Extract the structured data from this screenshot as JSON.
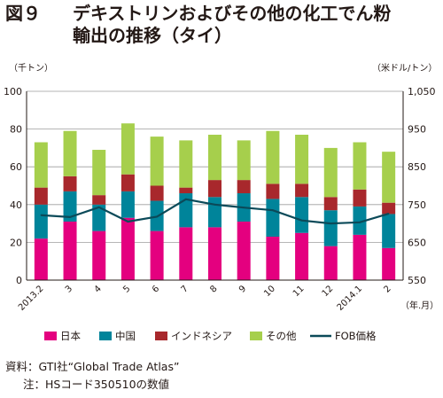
{
  "title": {
    "label": "図９",
    "line1": "デキストリンおよびその他の化工でん粉",
    "line2": "輸出の推移（タイ）"
  },
  "notes": {
    "source": "資料：GTI社“Global Trade Atlas”",
    "note": "注：HSコード350510の数値"
  },
  "colors": {
    "japan": "#e4007f",
    "china": "#00849a",
    "indonesia": "#a8282c",
    "other": "#a6cf4c",
    "fob": "#0b4a59",
    "grid": "#9e9e9e"
  },
  "chart_data": {
    "type": "bar",
    "stacked": true,
    "left_axis_unit": "（千トン）",
    "right_axis_unit": "（米ドル/トン）",
    "x_unit": "（年.月）",
    "ylim": [
      0,
      100
    ],
    "y_ticks": [
      0,
      20,
      40,
      60,
      80,
      100
    ],
    "y2lim": [
      550,
      1050
    ],
    "y2_ticks": [
      550,
      650,
      750,
      850,
      950,
      "1,050"
    ],
    "grid": true,
    "legend_position": "bottom",
    "categories": [
      "2013.2",
      "3",
      "4",
      "5",
      "6",
      "7",
      "8",
      "9",
      "10",
      "11",
      "12",
      "2014.1",
      "2"
    ],
    "series": [
      {
        "name": "日本",
        "values": [
          22,
          31,
          26,
          33,
          26,
          28,
          28,
          31,
          23,
          25,
          18,
          24,
          17
        ]
      },
      {
        "name": "中国",
        "values": [
          18,
          16,
          14,
          14,
          16,
          18,
          16,
          15,
          20,
          19,
          19,
          15,
          18
        ]
      },
      {
        "name": "インドネシア",
        "values": [
          9,
          8,
          5,
          9,
          8,
          3,
          9,
          7,
          8,
          7,
          7,
          9,
          6
        ]
      },
      {
        "name": "その他",
        "values": [
          24,
          24,
          24,
          27,
          26,
          25,
          24,
          21,
          28,
          26,
          26,
          25,
          27
        ]
      },
      {
        "name": "FOB価格",
        "axis": "right",
        "values": [
          722,
          717,
          743,
          705,
          718,
          764,
          750,
          742,
          735,
          708,
          700,
          703,
          726
        ]
      }
    ]
  }
}
